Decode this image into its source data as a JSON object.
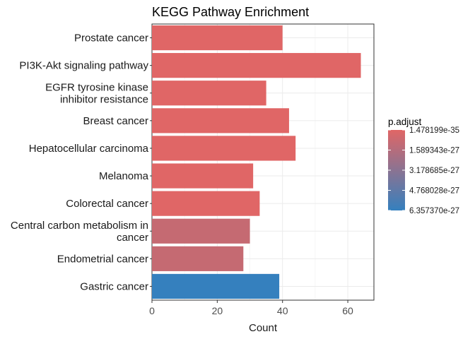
{
  "chart_data": {
    "type": "bar",
    "orientation": "horizontal",
    "title": "KEGG Pathway Enrichment",
    "xlabel": "Count",
    "ylabel": "",
    "xlim": [
      0,
      68
    ],
    "x_ticks": [
      0,
      20,
      40,
      60
    ],
    "grid": true,
    "legend_position": "right",
    "categories": [
      "Prostate cancer",
      "PI3K-Akt signaling pathway",
      "EGFR tyrosine kinase inhibitor resistance",
      "Breast cancer",
      "Hepatocellular carcinoma",
      "Melanoma",
      "Colorectal cancer",
      "Central carbon metabolism in cancer",
      "Endometrial cancer",
      "Gastric cancer"
    ],
    "category_display_lines": [
      [
        "Prostate cancer"
      ],
      [
        "PI3K-Akt signaling pathway"
      ],
      [
        "EGFR tyrosine kinase",
        "inhibitor resistance"
      ],
      [
        "Breast cancer"
      ],
      [
        "Hepatocellular carcinoma"
      ],
      [
        "Melanoma"
      ],
      [
        "Colorectal cancer"
      ],
      [
        "Central carbon metabolism in",
        "cancer"
      ],
      [
        "Endometrial cancer"
      ],
      [
        "Gastric cancer"
      ]
    ],
    "values": [
      40,
      64,
      35,
      42,
      44,
      31,
      33,
      30,
      28,
      39
    ],
    "p_adjust": [
      "1.478199e-35",
      "1.478199e-35",
      "1.478199e-35",
      "1.478199e-35",
      "1.478199e-35",
      "1.478199e-35",
      "1.478199e-35",
      "7.0e-28",
      "7.0e-28",
      "6.357370e-27"
    ],
    "bar_colors": [
      "#e06666",
      "#e06666",
      "#e06666",
      "#e06666",
      "#e06666",
      "#e06666",
      "#e06666",
      "#c56a72",
      "#c56a72",
      "#3580be"
    ],
    "legend": {
      "title": "p.adjust",
      "labels": [
        "1.478199e-35",
        "1.589343e-27",
        "3.178685e-27",
        "4.768028e-27",
        "6.357370e-27"
      ],
      "gradient_colors": [
        "#e06666",
        "#3580be"
      ]
    },
    "panel_background": "#ffffff",
    "grid_color": "#ebebeb",
    "axis_color": "#333333"
  }
}
